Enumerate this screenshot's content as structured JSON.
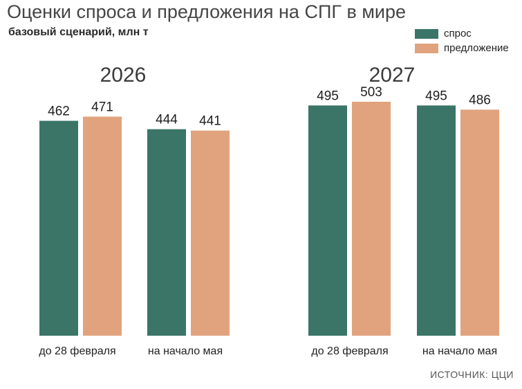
{
  "title": "Оценки спроса и предложения на СПГ в мире",
  "subtitle": "базовый сценарий, млн т",
  "source": "ИСТОЧНИК: ЦЦИ",
  "colors": {
    "demand": "#3a7568",
    "supply": "#e0a37e"
  },
  "legend": [
    {
      "label": "спрос",
      "color": "#3a7568"
    },
    {
      "label": "предложение",
      "color": "#e0a37e"
    }
  ],
  "chart_data": [
    {
      "type": "bar",
      "title": "2026",
      "categories": [
        "до 28 февраля",
        "на начало мая"
      ],
      "series": [
        {
          "name": "спрос",
          "values": [
            462,
            444
          ]
        },
        {
          "name": "предложение",
          "values": [
            471,
            441
          ]
        }
      ]
    },
    {
      "type": "bar",
      "title": "2027",
      "categories": [
        "до 28 февраля",
        "на начало мая"
      ],
      "series": [
        {
          "name": "спрос",
          "values": [
            495,
            495
          ]
        },
        {
          "name": "предложение",
          "values": [
            503,
            486
          ]
        }
      ]
    }
  ]
}
